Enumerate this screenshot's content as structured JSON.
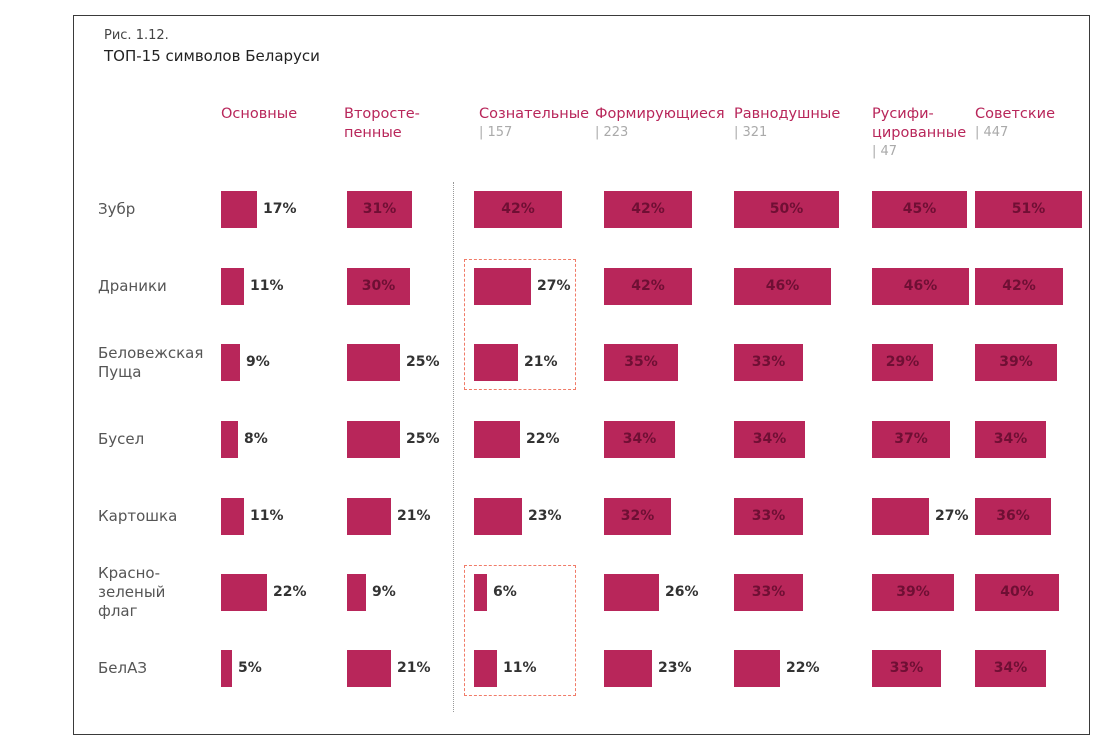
{
  "figure": {
    "number": "Рис. 1.12.",
    "title": "ТОП-15 символов Беларуси"
  },
  "chart_data": {
    "type": "bar",
    "title": "ТОП-15 символов Беларуси",
    "categories": [
      "Зубр",
      "Драники",
      "Беловежская Пуща",
      "Бусел",
      "Картошка",
      "Красно-зеленый флаг",
      "БелАЗ"
    ],
    "series": [
      {
        "name": "Основные",
        "values": [
          17,
          11,
          9,
          8,
          11,
          22,
          5
        ]
      },
      {
        "name": "Второстепенные",
        "values": [
          31,
          30,
          25,
          25,
          21,
          9,
          21
        ]
      },
      {
        "name": "Сознательные",
        "n": "| 157",
        "values": [
          42,
          27,
          21,
          22,
          23,
          6,
          11
        ]
      },
      {
        "name": "Формирующиеся",
        "n": "| 223",
        "values": [
          42,
          42,
          35,
          34,
          32,
          26,
          23
        ]
      },
      {
        "name": "Равнодушные",
        "n": "| 321",
        "values": [
          50,
          46,
          33,
          34,
          33,
          33,
          22
        ]
      },
      {
        "name": "Русифицированные",
        "n": "| 47",
        "values": [
          45,
          46,
          29,
          37,
          27,
          39,
          33
        ]
      },
      {
        "name": "Советские",
        "n": "| 447",
        "values": [
          51,
          42,
          39,
          34,
          36,
          40,
          34
        ]
      }
    ],
    "value_format": "{v}%",
    "highlighted": [
      {
        "series": "Сознательные",
        "categories": [
          "Драники",
          "Беловежская Пуща"
        ]
      },
      {
        "series": "Сознательные",
        "categories": [
          "Красно-зеленый флаг",
          "БелАЗ"
        ]
      }
    ],
    "colors": {
      "bar": "#b8265a",
      "header": "#b8265a",
      "highlight": "#f07b68"
    }
  },
  "columns": [
    {
      "label": "Основные"
    },
    {
      "label": "Второсте-\nпенные"
    },
    {
      "label": "Сознательные",
      "n": "| 157"
    },
    {
      "label": "Формирующиеся",
      "n": "| 223"
    },
    {
      "label": "Равнодушные",
      "n": "| 321"
    },
    {
      "label": "Русифи-\nцированные",
      "n": "| 47"
    },
    {
      "label": "Советские",
      "n": "| 447"
    }
  ],
  "rows": [
    {
      "label": "Зубр"
    },
    {
      "label": "Драники"
    },
    {
      "label": "Беловежская\nПуща"
    },
    {
      "label": "Бусел"
    },
    {
      "label": "Картошка"
    },
    {
      "label": "Красно-\nзеленый\nфлаг"
    },
    {
      "label": "БелАЗ"
    }
  ]
}
